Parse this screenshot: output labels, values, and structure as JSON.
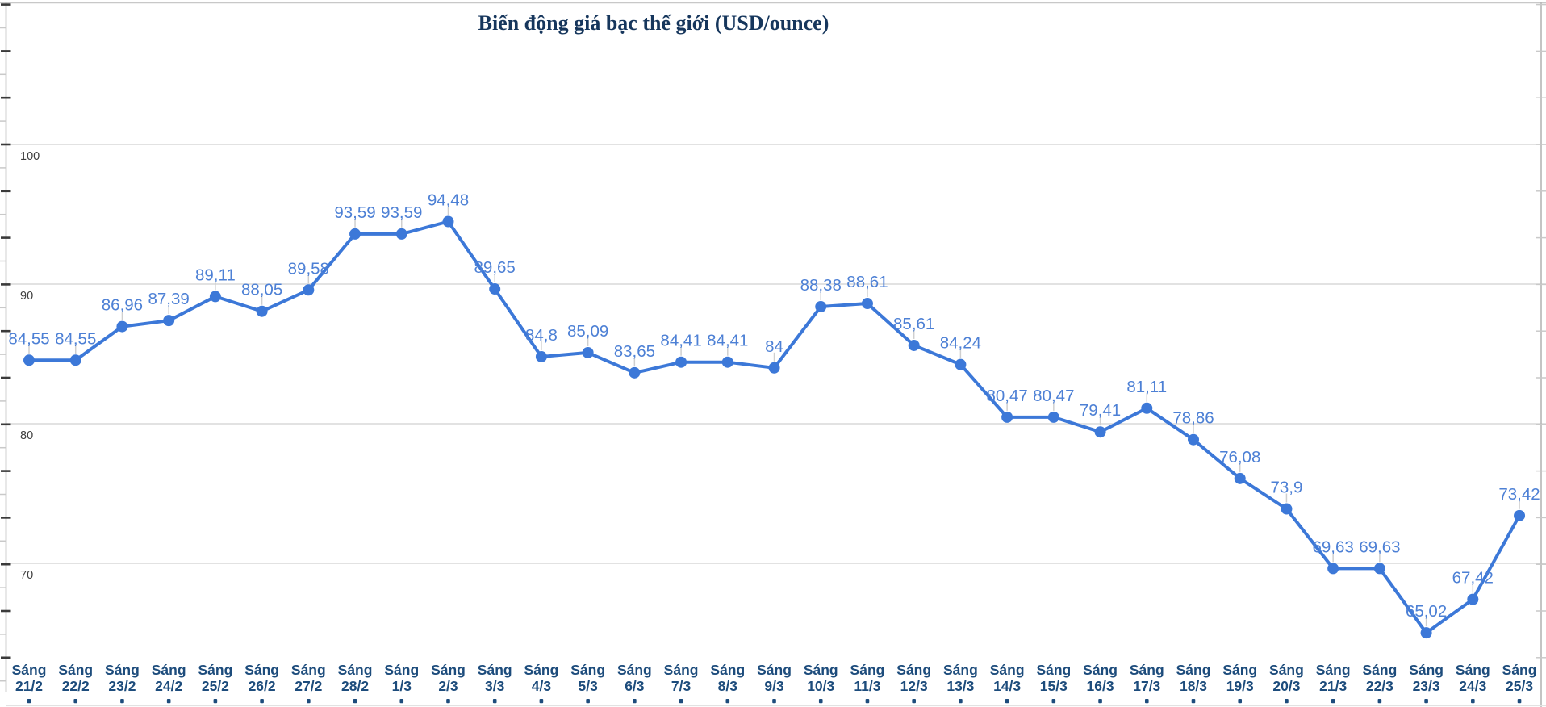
{
  "chart_data": {
    "type": "line",
    "title": "Biến động giá bạc thế giới (USD/ounce)",
    "xlabel": "",
    "ylabel": "",
    "legend": "none",
    "grid": "horizontal",
    "category_prefix": "Sáng",
    "categories": [
      "21/2",
      "22/2",
      "23/2",
      "24/2",
      "25/2",
      "26/2",
      "27/2",
      "28/2",
      "1/3",
      "2/3",
      "3/3",
      "4/3",
      "5/3",
      "6/3",
      "7/3",
      "8/3",
      "9/3",
      "10/3",
      "11/3",
      "12/3",
      "13/3",
      "14/3",
      "15/3",
      "16/3",
      "17/3",
      "18/3",
      "19/3",
      "20/3",
      "21/3",
      "22/3",
      "23/3",
      "24/3",
      "25/3"
    ],
    "values": [
      84.55,
      84.55,
      86.96,
      87.39,
      89.11,
      88.05,
      89.58,
      93.59,
      93.59,
      94.48,
      89.65,
      84.8,
      85.09,
      83.65,
      84.41,
      84.41,
      84,
      88.38,
      88.61,
      85.61,
      84.24,
      80.47,
      80.47,
      79.41,
      81.11,
      78.86,
      76.08,
      73.9,
      69.63,
      69.63,
      65.02,
      67.42,
      73.42
    ],
    "value_labels": [
      "84,55",
      "84,55",
      "86,96",
      "87,39",
      "89,11",
      "88,05",
      "89,58",
      "93,59",
      "93,59",
      "94,48",
      "89,65",
      "84,8",
      "85,09",
      "83,65",
      "84,41",
      "84,41",
      "84",
      "88,38",
      "88,61",
      "85,61",
      "84,24",
      "80,47",
      "80,47",
      "79,41",
      "81,11",
      "78,86",
      "76,08",
      "73,9",
      "69,63",
      "69,63",
      "65,02",
      "67,42",
      "73,42"
    ],
    "y_axis": {
      "tick_labels": [
        "100",
        "90",
        "80",
        "70"
      ],
      "ticks": [
        100,
        90,
        80,
        70
      ],
      "ylim": [
        61,
        110
      ]
    },
    "colors": {
      "series_line": "#3c78d8",
      "series_point": "#3c78d8",
      "data_label": "#4d80d5",
      "title": "#16365c",
      "category_label": "#1d4c7c",
      "y_tick_label": "#3f3f3f",
      "gridline": "#d9d9d9",
      "axis_line": "#b3b3b3",
      "leader_line": "#cfcfcf"
    }
  }
}
